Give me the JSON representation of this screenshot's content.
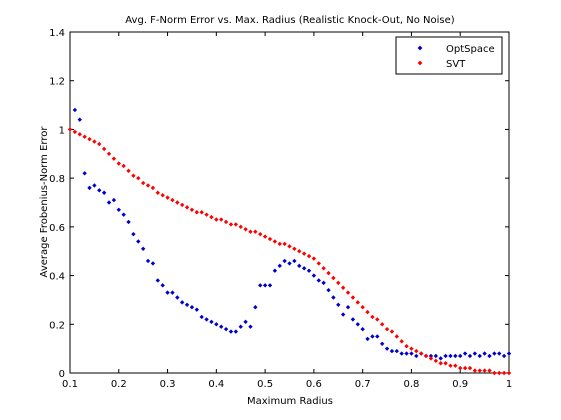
{
  "chart_data": {
    "type": "scatter",
    "title": "Avg. F-Norm Error vs. Max. Radius (Realistic Knock-Out, No Noise)",
    "xlabel": "Maximum Radius",
    "ylabel": "Average Frobenius-Norm Error",
    "xlim": [
      0.1,
      1.0
    ],
    "ylim": [
      0,
      1.4
    ],
    "xticks": [
      "0.1",
      "0.2",
      "0.3",
      "0.4",
      "0.5",
      "0.6",
      "0.7",
      "0.8",
      "0.9",
      "1"
    ],
    "yticks": [
      "0",
      "0.2",
      "0.4",
      "0.6",
      "0.8",
      "1",
      "1.2",
      "1.4"
    ],
    "grid": false,
    "legend_position": "top-right",
    "series": [
      {
        "name": "OptSpace",
        "color": "#0000cc",
        "x": [
          0.11,
          0.12,
          0.13,
          0.14,
          0.15,
          0.16,
          0.17,
          0.18,
          0.19,
          0.2,
          0.21,
          0.22,
          0.23,
          0.24,
          0.25,
          0.26,
          0.27,
          0.28,
          0.29,
          0.3,
          0.31,
          0.32,
          0.33,
          0.34,
          0.35,
          0.36,
          0.37,
          0.38,
          0.39,
          0.4,
          0.41,
          0.42,
          0.43,
          0.44,
          0.45,
          0.46,
          0.47,
          0.48,
          0.49,
          0.5,
          0.51,
          0.52,
          0.53,
          0.54,
          0.55,
          0.56,
          0.57,
          0.58,
          0.59,
          0.6,
          0.61,
          0.62,
          0.63,
          0.64,
          0.65,
          0.66,
          0.67,
          0.68,
          0.69,
          0.7,
          0.71,
          0.72,
          0.73,
          0.74,
          0.75,
          0.76,
          0.77,
          0.78,
          0.79,
          0.8,
          0.81,
          0.82,
          0.83,
          0.84,
          0.85,
          0.86,
          0.87,
          0.88,
          0.89,
          0.9,
          0.91,
          0.92,
          0.93,
          0.94,
          0.95,
          0.96,
          0.97,
          0.98,
          0.99,
          1.0
        ],
        "y": [
          1.08,
          1.04,
          0.82,
          0.76,
          0.77,
          0.75,
          0.74,
          0.7,
          0.71,
          0.67,
          0.65,
          0.62,
          0.57,
          0.54,
          0.51,
          0.46,
          0.45,
          0.38,
          0.36,
          0.33,
          0.33,
          0.31,
          0.29,
          0.28,
          0.27,
          0.26,
          0.23,
          0.22,
          0.21,
          0.2,
          0.19,
          0.18,
          0.17,
          0.17,
          0.19,
          0.21,
          0.19,
          0.27,
          0.36,
          0.36,
          0.36,
          0.42,
          0.44,
          0.46,
          0.45,
          0.46,
          0.44,
          0.43,
          0.42,
          0.4,
          0.38,
          0.37,
          0.34,
          0.31,
          0.28,
          0.24,
          0.27,
          0.22,
          0.2,
          0.18,
          0.14,
          0.15,
          0.15,
          0.12,
          0.1,
          0.09,
          0.09,
          0.08,
          0.08,
          0.08,
          0.07,
          0.08,
          0.07,
          0.07,
          0.07,
          0.06,
          0.07,
          0.07,
          0.07,
          0.07,
          0.08,
          0.07,
          0.08,
          0.07,
          0.08,
          0.07,
          0.08,
          0.08,
          0.07,
          0.08
        ]
      },
      {
        "name": "SVT",
        "color": "#ff0000",
        "x": [
          0.1,
          0.11,
          0.12,
          0.13,
          0.14,
          0.15,
          0.16,
          0.17,
          0.18,
          0.19,
          0.2,
          0.21,
          0.22,
          0.23,
          0.24,
          0.25,
          0.26,
          0.27,
          0.28,
          0.29,
          0.3,
          0.31,
          0.32,
          0.33,
          0.34,
          0.35,
          0.36,
          0.37,
          0.38,
          0.39,
          0.4,
          0.41,
          0.42,
          0.43,
          0.44,
          0.45,
          0.46,
          0.47,
          0.48,
          0.49,
          0.5,
          0.51,
          0.52,
          0.53,
          0.54,
          0.55,
          0.56,
          0.57,
          0.58,
          0.59,
          0.6,
          0.61,
          0.62,
          0.63,
          0.64,
          0.65,
          0.66,
          0.67,
          0.68,
          0.69,
          0.7,
          0.71,
          0.72,
          0.73,
          0.74,
          0.75,
          0.76,
          0.77,
          0.78,
          0.79,
          0.8,
          0.81,
          0.82,
          0.83,
          0.84,
          0.85,
          0.86,
          0.87,
          0.88,
          0.89,
          0.9,
          0.91,
          0.92,
          0.93,
          0.94,
          0.95,
          0.96,
          0.97,
          0.98,
          0.99,
          1.0
        ],
        "y": [
          1.0,
          0.99,
          0.98,
          0.97,
          0.96,
          0.95,
          0.94,
          0.92,
          0.9,
          0.88,
          0.86,
          0.85,
          0.83,
          0.81,
          0.8,
          0.78,
          0.77,
          0.76,
          0.74,
          0.73,
          0.72,
          0.71,
          0.7,
          0.69,
          0.68,
          0.67,
          0.66,
          0.66,
          0.65,
          0.64,
          0.63,
          0.63,
          0.62,
          0.61,
          0.61,
          0.6,
          0.59,
          0.58,
          0.58,
          0.57,
          0.56,
          0.55,
          0.54,
          0.53,
          0.53,
          0.52,
          0.51,
          0.5,
          0.49,
          0.48,
          0.47,
          0.45,
          0.43,
          0.41,
          0.39,
          0.37,
          0.35,
          0.33,
          0.31,
          0.29,
          0.27,
          0.25,
          0.23,
          0.22,
          0.2,
          0.18,
          0.17,
          0.15,
          0.13,
          0.11,
          0.1,
          0.09,
          0.08,
          0.07,
          0.06,
          0.05,
          0.04,
          0.04,
          0.03,
          0.03,
          0.02,
          0.02,
          0.02,
          0.01,
          0.01,
          0.01,
          0.01,
          0.0,
          0.0,
          0.0,
          0.0
        ]
      }
    ]
  }
}
